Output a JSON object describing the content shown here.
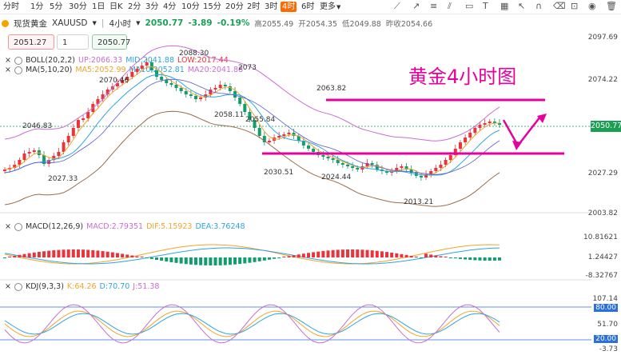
{
  "toolbar": {
    "timeframes": [
      "分时",
      "1分",
      "5分",
      "30分",
      "1日",
      "日K",
      "2分",
      "3分",
      "4分",
      "10分",
      "15分",
      "20分",
      "2时",
      "3时",
      "4时",
      "6时",
      "更多"
    ],
    "active": "4时"
  },
  "symbol": {
    "name": "现货黄金",
    "code": "XAUUSD",
    "period": "4小时",
    "price": "2050.77",
    "change": "-3.89",
    "pct": "-0.19%",
    "high_label": "高",
    "high": "2055.49",
    "open_label": "开",
    "open": "2054.35",
    "low_label": "低",
    "low": "2049.88",
    "prev_label": "昨收",
    "prev": "2054.66"
  },
  "trade": {
    "sell": "2051.27",
    "qty": "1",
    "buy": "2050.77"
  },
  "indicators": {
    "boll": {
      "name": "BOLL(20,2,2)",
      "up": "UP:2066.33",
      "mid": "MID:2041.88",
      "low": "LOW:2017.44"
    },
    "ma": {
      "name": "MA(5,10,20)",
      "ma5": "MA5:2052.99",
      "ma10": "MA10:2052.81",
      "ma20": "MA20:2041.88"
    },
    "macd": {
      "name": "MACD(12,26,9)",
      "macd": "MACD:2.79351",
      "dif": "DIF:5.15923",
      "dea": "DEA:3.76248"
    },
    "kdj": {
      "name": "KDJ(9,3,3)",
      "k": "K:64.26",
      "d": "D:70.70",
      "j": "J:51.38"
    }
  },
  "price_axis": [
    "2097.69",
    "2074.22",
    "2050.77",
    "2027.29",
    "2003.82"
  ],
  "macd_axis": [
    "10.81621",
    "1.24427",
    "-8.32767"
  ],
  "kdj_axis": [
    "107.14",
    "80.00",
    "51.70",
    "20.00",
    "-3.73"
  ],
  "price_labels": [
    "2088.30",
    "2073",
    "2070.46",
    "2063.82",
    "2058.11",
    "2055.84",
    "2046.83",
    "2030.51",
    "2027.33",
    "2024.44",
    "2013.21"
  ],
  "annotation": "黄金4小时图",
  "colors": {
    "up": "#e8343d",
    "down": "#139c6c",
    "annot": "#e6009e",
    "boll": "#c86ed0",
    "ma5": "#f0a52c",
    "ma10": "#2fa4e0"
  }
}
